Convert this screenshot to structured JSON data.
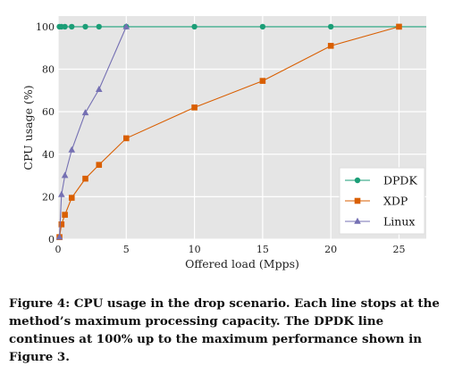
{
  "chart_data": {
    "type": "line",
    "xlabel": "Offered load (Mpps)",
    "ylabel": "CPU usage (%)",
    "xlim": [
      0,
      27
    ],
    "ylim": [
      0,
      105
    ],
    "xticks": [
      0,
      5,
      10,
      15,
      20,
      25
    ],
    "yticks": [
      0,
      20,
      40,
      60,
      80,
      100
    ],
    "grid": true,
    "legend": "right",
    "series": [
      {
        "name": "DPDK",
        "color": "#1b9e77",
        "marker": "circle",
        "points": [
          [
            0.1,
            100
          ],
          [
            0.25,
            100
          ],
          [
            0.5,
            100
          ],
          [
            1,
            100
          ],
          [
            2,
            100
          ],
          [
            3,
            100
          ],
          [
            5,
            100
          ],
          [
            10,
            100
          ],
          [
            15,
            100
          ],
          [
            20,
            100
          ],
          [
            25,
            100
          ],
          [
            27,
            100
          ]
        ]
      },
      {
        "name": "XDP",
        "color": "#d95f02",
        "marker": "square",
        "points": [
          [
            0.1,
            1
          ],
          [
            0.25,
            7
          ],
          [
            0.5,
            11.5
          ],
          [
            1,
            19.5
          ],
          [
            2,
            28.5
          ],
          [
            3,
            35
          ],
          [
            5,
            47.5
          ],
          [
            10,
            62
          ],
          [
            15,
            74.5
          ],
          [
            20,
            91
          ],
          [
            25,
            100
          ]
        ]
      },
      {
        "name": "Linux",
        "color": "#7570b3",
        "marker": "triangle",
        "points": [
          [
            0.1,
            1
          ],
          [
            0.25,
            21
          ],
          [
            0.5,
            30
          ],
          [
            1,
            42
          ],
          [
            2,
            59.5
          ],
          [
            3,
            70.5
          ],
          [
            5,
            100
          ]
        ]
      }
    ]
  },
  "caption": "Figure 4:  CPU usage in the drop scenario. Each line stops at the method’s maximum processing capacity. The DPDK line continues at 100% up to the maximum performance shown in Figure 3."
}
